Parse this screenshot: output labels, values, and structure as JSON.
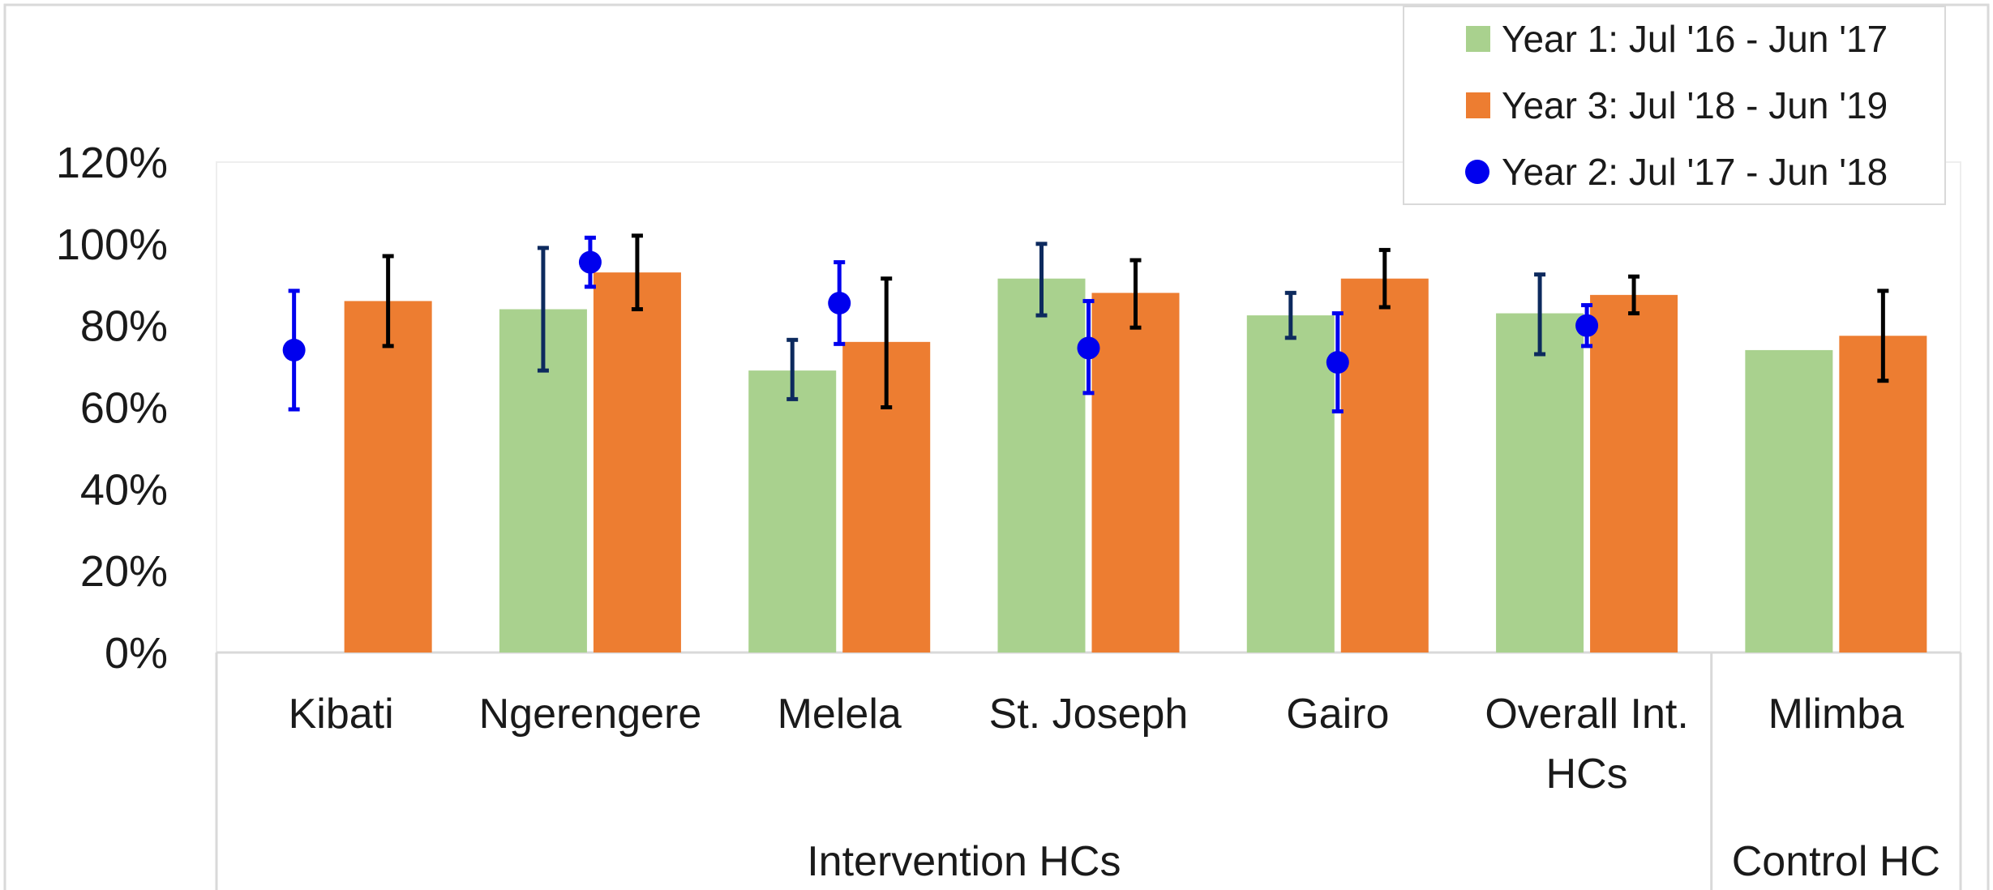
{
  "chart_data": {
    "type": "bar",
    "title": "",
    "xlabel": "",
    "ylabel": "",
    "ylim": [
      0,
      1.2
    ],
    "y_ticks": [
      {
        "value": 0,
        "label": "0%"
      },
      {
        "value": 0.2,
        "label": "20%"
      },
      {
        "value": 0.4,
        "label": "40%"
      },
      {
        "value": 0.6,
        "label": "60%"
      },
      {
        "value": 0.8,
        "label": "80%"
      },
      {
        "value": 1.0,
        "label": "100%"
      },
      {
        "value": 1.2,
        "label": "120%"
      }
    ],
    "categories": [
      {
        "key": "kibati",
        "lines": [
          "Kibati"
        ]
      },
      {
        "key": "ngerengere",
        "lines": [
          "Ngerengere"
        ]
      },
      {
        "key": "melela",
        "lines": [
          "Melela"
        ]
      },
      {
        "key": "st-joseph",
        "lines": [
          "St. Joseph"
        ]
      },
      {
        "key": "gairo",
        "lines": [
          "Gairo"
        ]
      },
      {
        "key": "overall-int",
        "lines": [
          "Overall Int.",
          "HCs"
        ]
      },
      {
        "key": "mlimba",
        "lines": [
          "Mlimba"
        ]
      }
    ],
    "groups": [
      {
        "label": "Intervention HCs",
        "from": 0,
        "to": 5
      },
      {
        "label": "Control HC",
        "from": 6,
        "to": 6
      }
    ],
    "series": [
      {
        "name": "Year 1: Jul '16 - Jun '17",
        "kind": "bar",
        "color": "#a9d18e",
        "error_color": "#0d2a5e",
        "values": [
          null,
          0.84,
          0.69,
          0.915,
          0.825,
          0.83,
          0.74
        ],
        "error_low": [
          null,
          0.69,
          0.62,
          0.825,
          0.77,
          0.73,
          null
        ],
        "error_high": [
          null,
          0.99,
          0.765,
          1.0,
          0.88,
          0.925,
          null
        ]
      },
      {
        "name": "Year 3: Jul '18 - Jun '19",
        "kind": "bar",
        "color": "#ed7d31",
        "error_color": "#000000",
        "values": [
          0.86,
          0.93,
          0.76,
          0.88,
          0.915,
          0.875,
          0.775
        ],
        "error_low": [
          0.75,
          0.84,
          0.6,
          0.795,
          0.845,
          0.83,
          0.665
        ],
        "error_high": [
          0.97,
          1.02,
          0.915,
          0.96,
          0.985,
          0.92,
          0.885
        ]
      },
      {
        "name": "Year 2: Jul '17 - Jun '18",
        "kind": "point",
        "color": "#0000ee",
        "error_color": "#0000ee",
        "values": [
          0.74,
          0.955,
          0.855,
          0.745,
          0.71,
          0.8,
          null
        ],
        "error_low": [
          0.595,
          0.895,
          0.755,
          0.635,
          0.59,
          0.75,
          null
        ],
        "error_high": [
          0.885,
          1.015,
          0.955,
          0.86,
          0.83,
          0.85,
          null
        ]
      }
    ],
    "legend": {
      "placement": "top-right",
      "entries": [
        {
          "label": "Year 1: Jul '16 - Jun '17",
          "marker": "square",
          "color": "#a9d18e"
        },
        {
          "label": "Year 3: Jul '18 - Jun '19",
          "marker": "square",
          "color": "#ed7d31"
        },
        {
          "label": "Year 2: Jul '17 - Jun '18",
          "marker": "circle",
          "color": "#0000ee"
        }
      ]
    },
    "grid": false
  }
}
